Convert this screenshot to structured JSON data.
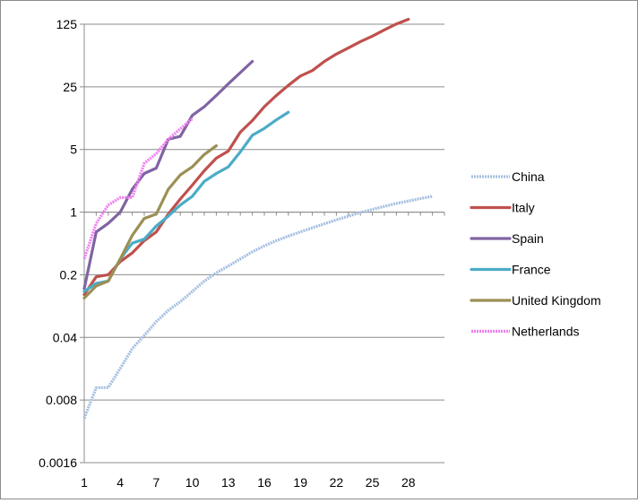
{
  "chart_data": {
    "type": "line",
    "title": "",
    "xlabel": "",
    "ylabel": "",
    "y_scale": "log",
    "ylim": [
      0.0016,
      125
    ],
    "xlim": [
      1,
      31
    ],
    "y_ticks": [
      {
        "value": 0.0016,
        "label": "0.0016"
      },
      {
        "value": 0.008,
        "label": "0.008"
      },
      {
        "value": 0.04,
        "label": "0.04"
      },
      {
        "value": 0.2,
        "label": "0.2"
      },
      {
        "value": 1,
        "label": "1"
      },
      {
        "value": 5,
        "label": "5"
      },
      {
        "value": 25,
        "label": "25"
      },
      {
        "value": 125,
        "label": "125"
      }
    ],
    "x_ticks": [
      {
        "value": 1,
        "label": "1"
      },
      {
        "value": 4,
        "label": "4"
      },
      {
        "value": 7,
        "label": "7"
      },
      {
        "value": 10,
        "label": "10"
      },
      {
        "value": 13,
        "label": "13"
      },
      {
        "value": 16,
        "label": "16"
      },
      {
        "value": 19,
        "label": "19"
      },
      {
        "value": 22,
        "label": "22"
      },
      {
        "value": 25,
        "label": "25"
      },
      {
        "value": 28,
        "label": "28"
      }
    ],
    "grid": "horizontal",
    "legend_position": "right",
    "series": [
      {
        "name": "China",
        "color": "#a4bfe0",
        "style": "dashed-light",
        "points": [
          [
            1,
            0.005
          ],
          [
            2,
            0.011
          ],
          [
            3,
            0.011
          ],
          [
            4,
            0.018
          ],
          [
            5,
            0.03
          ],
          [
            6,
            0.042
          ],
          [
            7,
            0.06
          ],
          [
            8,
            0.08
          ],
          [
            9,
            0.1
          ],
          [
            10,
            0.13
          ],
          [
            11,
            0.17
          ],
          [
            12,
            0.21
          ],
          [
            13,
            0.25
          ],
          [
            14,
            0.3
          ],
          [
            15,
            0.36
          ],
          [
            16,
            0.42
          ],
          [
            17,
            0.48
          ],
          [
            18,
            0.54
          ],
          [
            19,
            0.6
          ],
          [
            20,
            0.67
          ],
          [
            21,
            0.74
          ],
          [
            22,
            0.82
          ],
          [
            23,
            0.9
          ],
          [
            24,
            0.99
          ],
          [
            25,
            1.07
          ],
          [
            26,
            1.16
          ],
          [
            27,
            1.25
          ],
          [
            28,
            1.33
          ],
          [
            29,
            1.42
          ],
          [
            30,
            1.5
          ]
        ]
      },
      {
        "name": "Italy",
        "color": "#c0504d",
        "style": "solid",
        "points": [
          [
            1,
            0.12
          ],
          [
            2,
            0.19
          ],
          [
            3,
            0.2
          ],
          [
            4,
            0.28
          ],
          [
            5,
            0.35
          ],
          [
            6,
            0.48
          ],
          [
            7,
            0.6
          ],
          [
            8,
            0.95
          ],
          [
            9,
            1.4
          ],
          [
            10,
            2.0
          ],
          [
            11,
            2.9
          ],
          [
            12,
            4.0
          ],
          [
            13,
            4.8
          ],
          [
            14,
            7.8
          ],
          [
            15,
            10.5
          ],
          [
            16,
            15
          ],
          [
            17,
            20
          ],
          [
            18,
            26
          ],
          [
            19,
            33
          ],
          [
            20,
            38
          ],
          [
            21,
            48
          ],
          [
            22,
            58
          ],
          [
            23,
            68
          ],
          [
            24,
            80
          ],
          [
            25,
            92
          ],
          [
            26,
            108
          ],
          [
            27,
            126
          ],
          [
            28,
            142
          ]
        ]
      },
      {
        "name": "Spain",
        "color": "#8064a2",
        "style": "solid",
        "points": [
          [
            1,
            0.14
          ],
          [
            2,
            0.6
          ],
          [
            3,
            0.75
          ],
          [
            4,
            1.0
          ],
          [
            5,
            1.8
          ],
          [
            6,
            2.7
          ],
          [
            7,
            3.1
          ],
          [
            8,
            6.5
          ],
          [
            9,
            7.0
          ],
          [
            10,
            12
          ],
          [
            11,
            15
          ],
          [
            12,
            20
          ],
          [
            13,
            27
          ],
          [
            14,
            36
          ],
          [
            15,
            48
          ]
        ]
      },
      {
        "name": "France",
        "color": "#4bacc6",
        "style": "solid",
        "points": [
          [
            1,
            0.13
          ],
          [
            2,
            0.16
          ],
          [
            3,
            0.17
          ],
          [
            4,
            0.3
          ],
          [
            5,
            0.45
          ],
          [
            6,
            0.5
          ],
          [
            7,
            0.7
          ],
          [
            8,
            0.9
          ],
          [
            9,
            1.2
          ],
          [
            10,
            1.5
          ],
          [
            11,
            2.2
          ],
          [
            12,
            2.7
          ],
          [
            13,
            3.2
          ],
          [
            14,
            4.7
          ],
          [
            15,
            7.2
          ],
          [
            16,
            8.6
          ],
          [
            17,
            10.7
          ],
          [
            18,
            13
          ]
        ]
      },
      {
        "name": "United Kingdom",
        "color": "#9b8f54",
        "style": "solid",
        "points": [
          [
            1,
            0.11
          ],
          [
            2,
            0.15
          ],
          [
            3,
            0.17
          ],
          [
            4,
            0.3
          ],
          [
            5,
            0.55
          ],
          [
            6,
            0.85
          ],
          [
            7,
            0.95
          ],
          [
            8,
            1.8
          ],
          [
            9,
            2.6
          ],
          [
            10,
            3.2
          ],
          [
            11,
            4.4
          ],
          [
            12,
            5.5
          ]
        ]
      },
      {
        "name": "Netherlands",
        "color": "#f07ef0",
        "style": "dashed-light",
        "points": [
          [
            1,
            0.3
          ],
          [
            2,
            0.75
          ],
          [
            3,
            1.2
          ],
          [
            4,
            1.45
          ],
          [
            5,
            1.45
          ],
          [
            6,
            3.5
          ],
          [
            7,
            4.5
          ],
          [
            8,
            6.5
          ],
          [
            9,
            8.5
          ],
          [
            10,
            11
          ]
        ]
      }
    ]
  }
}
